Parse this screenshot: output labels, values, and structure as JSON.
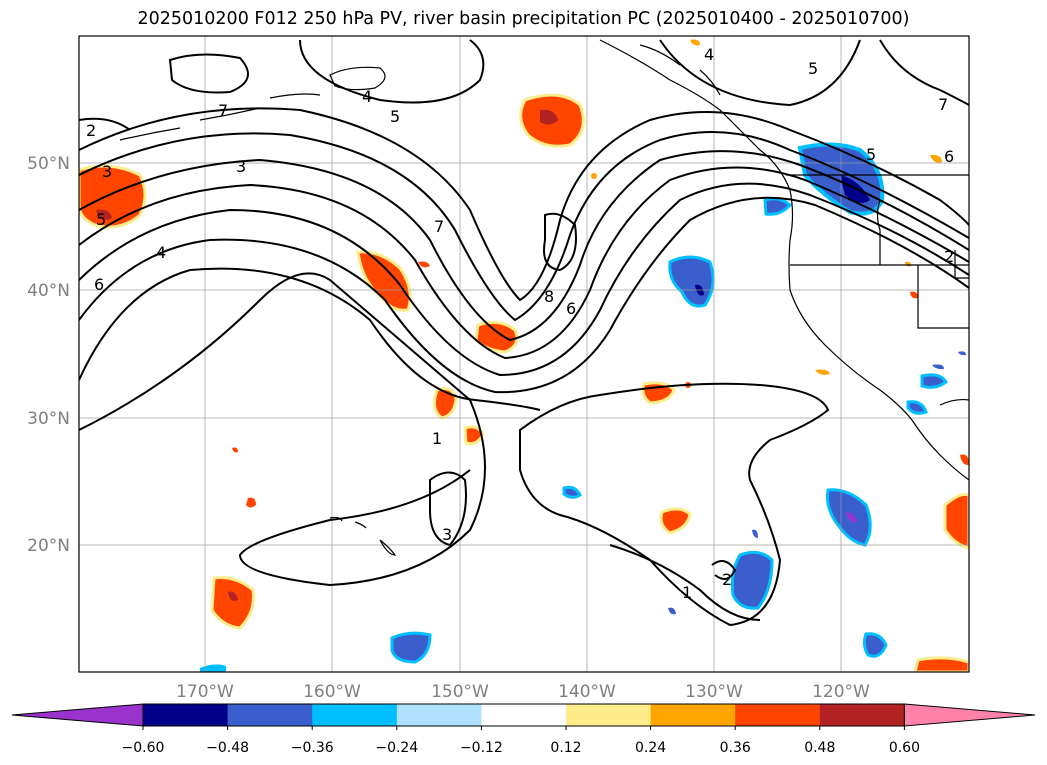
{
  "title": "2025010200 F012 250 hPa PV, river basin precipitation PC (2025010400 - 2025010700)",
  "lon_labels": [
    "170°W",
    "160°W",
    "150°W",
    "140°W",
    "130°W",
    "120°W"
  ],
  "lat_labels": [
    "50°N",
    "40°N",
    "30°N",
    "20°N"
  ],
  "colorbar": {
    "colors": [
      "#9933cc",
      "#00008b",
      "#3a5fcd",
      "#00bfff",
      "#b0e2ff",
      "#ffffff",
      "#ffec8b",
      "#ffa500",
      "#ff4500",
      "#b22222",
      "#ff82ab"
    ],
    "tick_labels": [
      "−0.60",
      "−0.48",
      "−0.36",
      "−0.24",
      "−0.12",
      "0.12",
      "0.24",
      "0.36",
      "0.48",
      "0.60"
    ]
  },
  "contour_labels": [
    "7",
    "3",
    "4",
    "5",
    "4",
    "2",
    "3",
    "5",
    "6",
    "7",
    "8",
    "6",
    "1",
    "3",
    "1",
    "2",
    "4",
    "5",
    "7",
    "5",
    "6",
    "2"
  ]
}
